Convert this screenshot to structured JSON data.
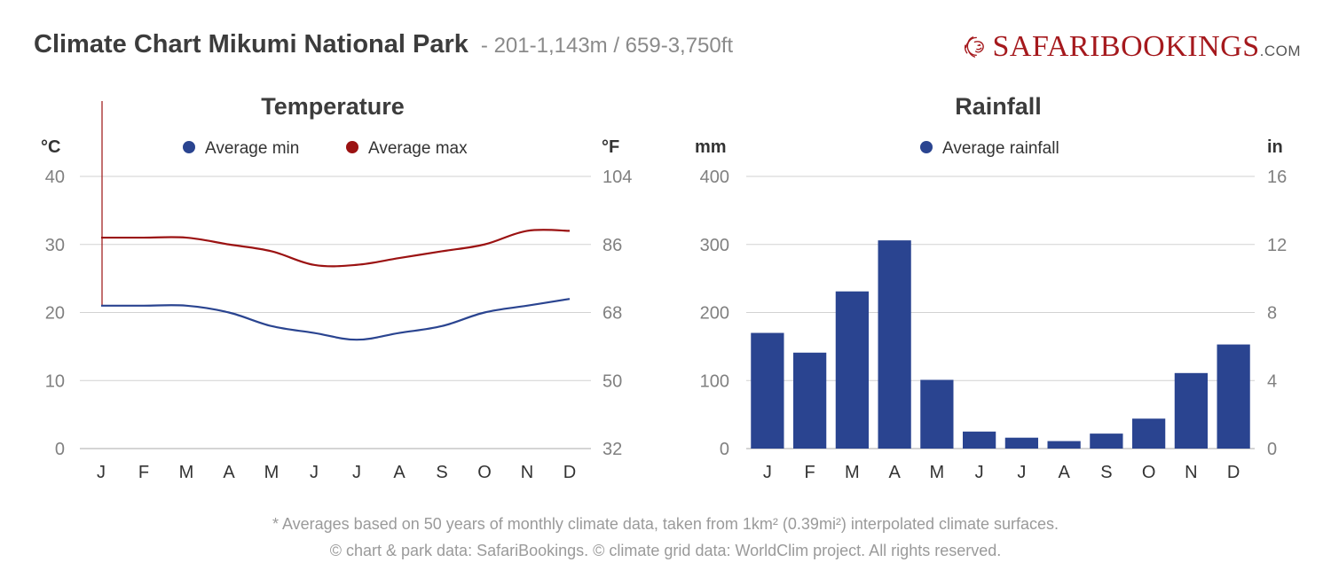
{
  "header": {
    "title": "Climate Chart Mikumi National Park",
    "subtitle": "- 201-1,143m / 659-3,750ft"
  },
  "logo": {
    "part_a": "SAFARI",
    "part_b": "BOOKINGS",
    "part_c": ".COM",
    "icon": "lion-icon"
  },
  "colors": {
    "min": "#2a4490",
    "max": "#9b1212",
    "bar": "#2a4490",
    "grid": "#d2d2d2",
    "axis_text": "#808080",
    "label_text": "#333333",
    "title_text": "#3c3c3c"
  },
  "chart_data": [
    {
      "type": "line",
      "title": "Temperature",
      "left_unit": "°C",
      "right_unit": "°F",
      "categories": [
        "J",
        "F",
        "M",
        "A",
        "M",
        "J",
        "J",
        "A",
        "S",
        "O",
        "N",
        "D"
      ],
      "series": [
        {
          "name": "Average min",
          "values": [
            21,
            21,
            21,
            20,
            18,
            17,
            16,
            17,
            18,
            20,
            21,
            22
          ]
        },
        {
          "name": "Average max",
          "values": [
            31,
            31,
            31,
            30,
            29,
            27,
            27,
            28,
            29,
            30,
            32,
            32
          ]
        }
      ],
      "ylim": [
        0,
        40
      ],
      "yticks": [
        0,
        10,
        20,
        30,
        40
      ],
      "right_ticks": [
        "32",
        "50",
        "68",
        "86",
        "104"
      ],
      "legend": "top-center",
      "grid": true
    },
    {
      "type": "bar",
      "title": "Rainfall",
      "left_unit": "mm",
      "right_unit": "in",
      "categories": [
        "J",
        "F",
        "M",
        "A",
        "M",
        "J",
        "J",
        "A",
        "S",
        "O",
        "N",
        "D"
      ],
      "series": [
        {
          "name": "Average rainfall",
          "values": [
            170,
            141,
            231,
            306,
            101,
            25,
            16,
            11,
            22,
            44,
            111,
            153
          ]
        }
      ],
      "ylim": [
        0,
        400
      ],
      "yticks": [
        0,
        100,
        200,
        300,
        400
      ],
      "right_ticks": [
        "0",
        "4",
        "8",
        "12",
        "16"
      ],
      "legend": "top-center",
      "grid": true
    }
  ],
  "footer": {
    "line1": "* Averages based on 50 years of monthly climate data, taken from 1km² (0.39mi²) interpolated climate surfaces.",
    "line2": "© chart & park data: SafariBookings. © climate grid data: WorldClim project. All rights reserved."
  }
}
